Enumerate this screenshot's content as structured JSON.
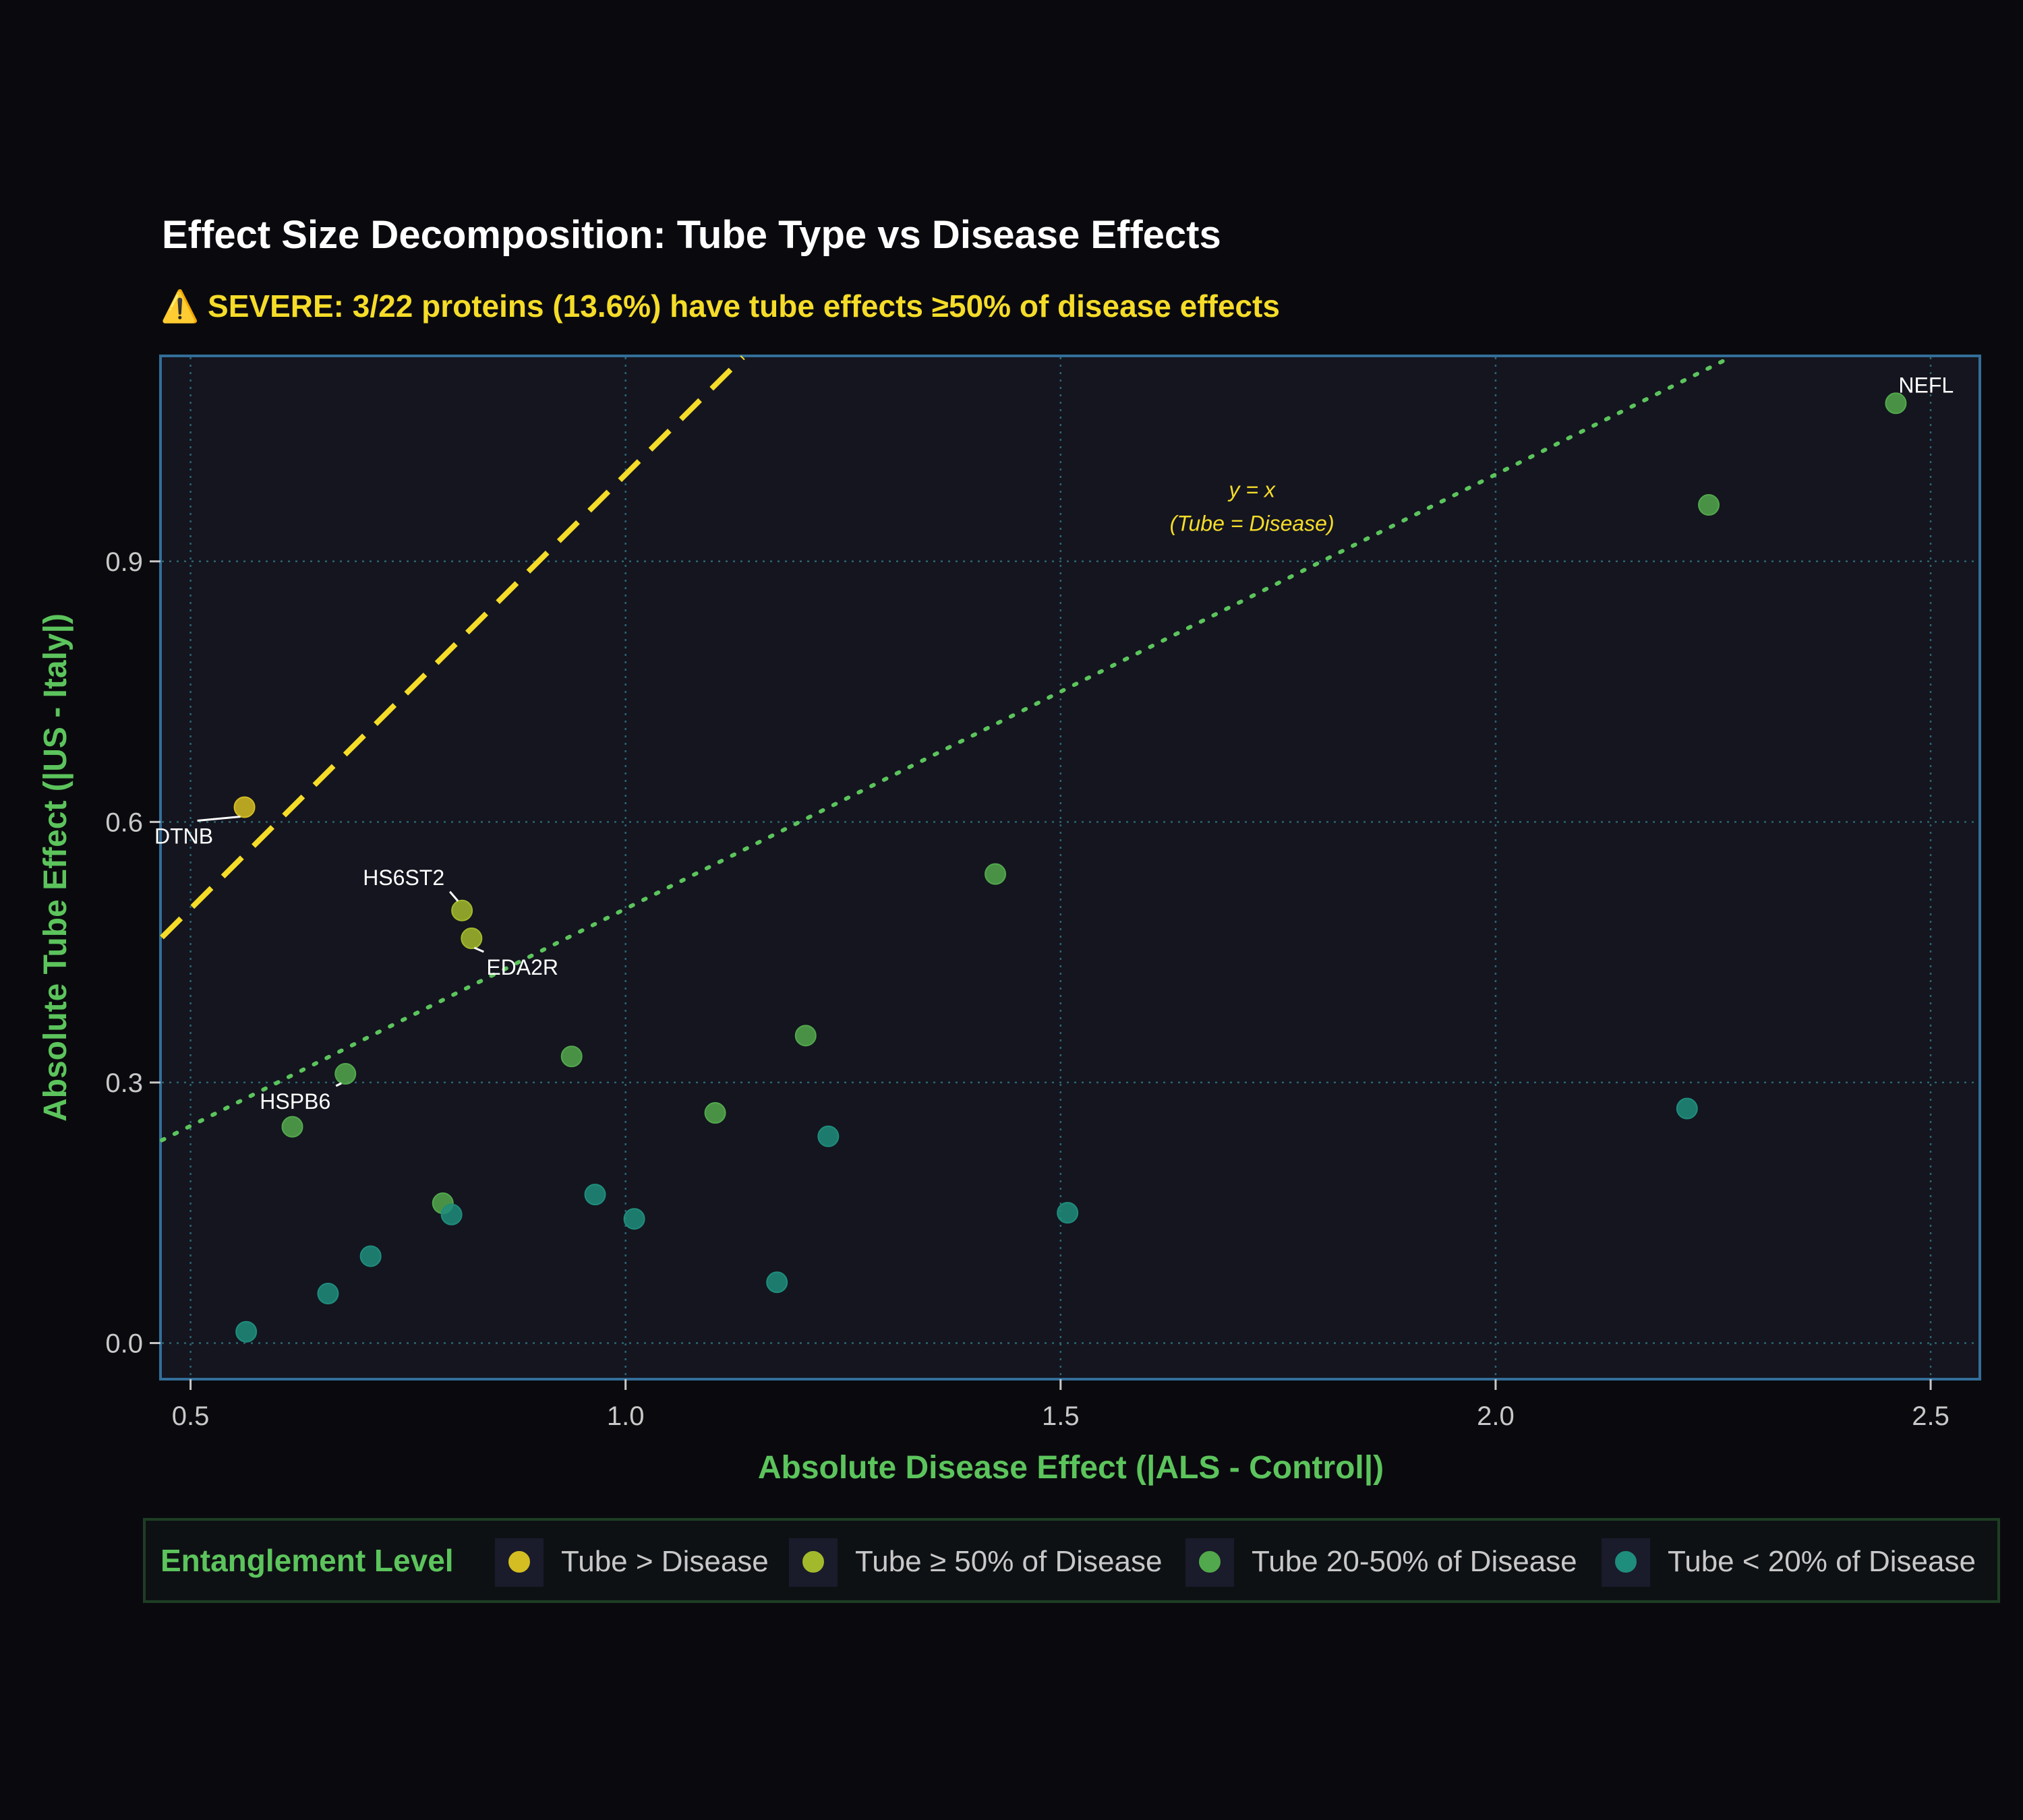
{
  "chart_data": {
    "type": "scatter",
    "title": "Effect Size Decomposition: Tube Type vs Disease Effects",
    "subtitle": "⚠️ SEVERE: 3/22 proteins (13.6%) have tube effects ≥50% of disease effects",
    "xlabel": "Absolute Disease Effect (|ALS - Control|)",
    "ylabel": "Absolute Tube Effect (|US - Italy|)",
    "xlim": [
      0.467,
      2.555
    ],
    "ylim": [
      -0.04,
      1.135
    ],
    "x_ticks": [
      0.5,
      1.0,
      1.5,
      2.0,
      2.5
    ],
    "x_tick_labels": [
      "0.5",
      "1.0",
      "1.5",
      "2.0",
      "2.5"
    ],
    "y_ticks": [
      0.0,
      0.3,
      0.6,
      0.9
    ],
    "y_tick_labels": [
      "0.0",
      "0.3",
      "0.6",
      "0.9"
    ],
    "grid": true,
    "reference_lines": [
      {
        "name": "y = x",
        "slope": 1.0,
        "style": "dashed",
        "color": "#f5dc28"
      },
      {
        "name": "50% of disease",
        "slope": 0.5,
        "style": "dotted",
        "color": "#5cc45c"
      }
    ],
    "annotation": {
      "line1": "y = x",
      "line2": "(Tube = Disease)",
      "x": 1.72,
      "y": 0.96
    },
    "legend": {
      "title": "Entanglement Level",
      "placement": "bottom",
      "entries": [
        {
          "key": "gt",
          "label": "Tube > Disease",
          "color": "#d4bd22"
        },
        {
          "key": "ge50",
          "label": "Tube ≥ 50% of Disease",
          "color": "#a2b92c"
        },
        {
          "key": "p20_50",
          "label": "Tube 20-50% of Disease",
          "color": "#52a84c"
        },
        {
          "key": "lt20",
          "label": "Tube < 20% of Disease",
          "color": "#1f8d7c"
        }
      ]
    },
    "points": [
      {
        "x": 0.562,
        "y": 0.617,
        "category": "gt",
        "label": "DTNB"
      },
      {
        "x": 0.812,
        "y": 0.498,
        "category": "ge50",
        "label": "HS6ST2"
      },
      {
        "x": 0.823,
        "y": 0.466,
        "category": "ge50",
        "label": "EDA2R"
      },
      {
        "x": 0.678,
        "y": 0.31,
        "category": "p20_50",
        "label": "HSPB6"
      },
      {
        "x": 2.46,
        "y": 1.082,
        "category": "p20_50",
        "label": "NEFL"
      },
      {
        "x": 2.245,
        "y": 0.965,
        "category": "p20_50",
        "label": ""
      },
      {
        "x": 1.425,
        "y": 0.54,
        "category": "p20_50",
        "label": ""
      },
      {
        "x": 1.207,
        "y": 0.354,
        "category": "p20_50",
        "label": ""
      },
      {
        "x": 0.938,
        "y": 0.33,
        "category": "p20_50",
        "label": ""
      },
      {
        "x": 1.103,
        "y": 0.265,
        "category": "p20_50",
        "label": ""
      },
      {
        "x": 0.617,
        "y": 0.249,
        "category": "p20_50",
        "label": ""
      },
      {
        "x": 0.79,
        "y": 0.161,
        "category": "p20_50",
        "label": ""
      },
      {
        "x": 2.22,
        "y": 0.27,
        "category": "lt20",
        "label": ""
      },
      {
        "x": 1.233,
        "y": 0.238,
        "category": "lt20",
        "label": ""
      },
      {
        "x": 0.965,
        "y": 0.171,
        "category": "lt20",
        "label": ""
      },
      {
        "x": 1.01,
        "y": 0.143,
        "category": "lt20",
        "label": ""
      },
      {
        "x": 0.8,
        "y": 0.148,
        "category": "lt20",
        "label": ""
      },
      {
        "x": 1.508,
        "y": 0.15,
        "category": "lt20",
        "label": ""
      },
      {
        "x": 0.707,
        "y": 0.1,
        "category": "lt20",
        "label": ""
      },
      {
        "x": 1.174,
        "y": 0.07,
        "category": "lt20",
        "label": ""
      },
      {
        "x": 0.658,
        "y": 0.057,
        "category": "lt20",
        "label": ""
      },
      {
        "x": 0.564,
        "y": 0.013,
        "category": "lt20",
        "label": ""
      }
    ]
  },
  "colors": {
    "background": "#0a0a0e",
    "panel": "#14151f",
    "panel_border": "#336e99",
    "grid": "#2b6672",
    "axis_title": "#5cc45c",
    "warning": "#f5dc28",
    "legend_border": "#1e3e24"
  }
}
